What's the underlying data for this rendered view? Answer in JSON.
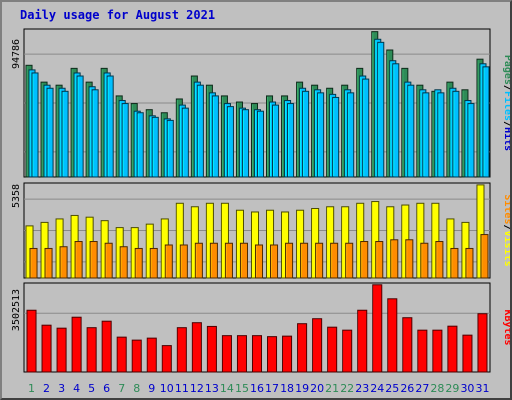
{
  "title": "Daily usage for August 2021",
  "colors": {
    "background": "#c0c0c0",
    "grid": "#8a8a8a",
    "pages": "#2e8b57",
    "files": "#00bfff",
    "visits": "#ffff00",
    "sites": "#ff8c00",
    "kbytes": "#ff0000",
    "title": "#0000cc",
    "day_weekday": "#0000cc",
    "day_weekend": "#2e8b57"
  },
  "chart_data": [
    {
      "type": "bar",
      "panel": "pages-files",
      "ymax_label": "94786",
      "ylim": [
        0,
        94786
      ],
      "right_label": {
        "parts": [
          "Pages",
          "/",
          "Files",
          "/",
          "Hits"
        ]
      },
      "categories": [
        "1",
        "2",
        "3",
        "4",
        "5",
        "6",
        "7",
        "8",
        "9",
        "10",
        "11",
        "12",
        "13",
        "14",
        "15",
        "16",
        "17",
        "18",
        "19",
        "20",
        "21",
        "22",
        "23",
        "24",
        "25",
        "26",
        "27",
        "28",
        "29",
        "30",
        "31"
      ],
      "series": [
        {
          "name": "Pages",
          "color": "pages",
          "values": [
            73000,
            62000,
            60000,
            71000,
            62000,
            71000,
            53000,
            48000,
            44000,
            42000,
            51000,
            66000,
            60000,
            53000,
            49000,
            48000,
            53000,
            53000,
            62000,
            60000,
            58000,
            60000,
            71000,
            95000,
            83000,
            71000,
            60000,
            56000,
            62000,
            57000,
            77000
          ]
        },
        {
          "name": "Files",
          "color": "files",
          "values": [
            70000,
            60000,
            58000,
            68000,
            59000,
            68000,
            50000,
            43000,
            40000,
            38000,
            47000,
            62000,
            55000,
            48000,
            45000,
            44000,
            49000,
            50000,
            58000,
            57000,
            54000,
            57000,
            66000,
            90000,
            76000,
            62000,
            57000,
            57000,
            58000,
            50000,
            74000
          ]
        },
        {
          "name": "Hits",
          "color": "files",
          "values": [
            68000,
            58000,
            56000,
            66000,
            57000,
            66000,
            48000,
            42000,
            39000,
            37000,
            45000,
            60000,
            53000,
            46000,
            44000,
            43000,
            47000,
            48000,
            56000,
            55000,
            52000,
            55000,
            64000,
            88000,
            74000,
            60000,
            55000,
            55000,
            56000,
            48000,
            72000
          ]
        }
      ]
    },
    {
      "type": "bar",
      "panel": "visits-sites",
      "ymax_label": "5358",
      "ylim": [
        0,
        5358
      ],
      "right_label": {
        "parts": [
          "Sites",
          "/",
          "Visits"
        ]
      },
      "categories": [
        "1",
        "2",
        "3",
        "4",
        "5",
        "6",
        "7",
        "8",
        "9",
        "10",
        "11",
        "12",
        "13",
        "14",
        "15",
        "16",
        "17",
        "18",
        "19",
        "20",
        "21",
        "22",
        "23",
        "24",
        "25",
        "26",
        "27",
        "28",
        "29",
        "30",
        "31"
      ],
      "series": [
        {
          "name": "Visits",
          "color": "visits",
          "values": [
            3000,
            3200,
            3400,
            3600,
            3500,
            3300,
            2900,
            2900,
            3100,
            3400,
            4300,
            4100,
            4300,
            4300,
            3900,
            3800,
            3900,
            3800,
            3900,
            4000,
            4100,
            4100,
            4300,
            4400,
            4100,
            4200,
            4300,
            4300,
            3400,
            3200,
            5358
          ]
        },
        {
          "name": "Sites",
          "color": "sites",
          "values": [
            1700,
            1700,
            1800,
            2100,
            2100,
            2000,
            1800,
            1700,
            1700,
            1900,
            1900,
            2000,
            2000,
            2000,
            2000,
            1900,
            1900,
            2000,
            2000,
            2000,
            2000,
            2000,
            2100,
            2100,
            2200,
            2200,
            2000,
            2100,
            1700,
            1700,
            2500
          ]
        }
      ]
    },
    {
      "type": "bar",
      "panel": "kbytes",
      "ymax_label": "3502513",
      "ylim": [
        0,
        3502513
      ],
      "right_label": {
        "parts": [
          "KBytes"
        ]
      },
      "categories": [
        "1",
        "2",
        "3",
        "4",
        "5",
        "6",
        "7",
        "8",
        "9",
        "10",
        "11",
        "12",
        "13",
        "14",
        "15",
        "16",
        "17",
        "18",
        "19",
        "20",
        "21",
        "22",
        "23",
        "24",
        "25",
        "26",
        "27",
        "28",
        "29",
        "30",
        "31"
      ],
      "series": [
        {
          "name": "KBytes",
          "color": "kbytes",
          "values": [
            2480000,
            1880000,
            1760000,
            2200000,
            1780000,
            2040000,
            1400000,
            1280000,
            1360000,
            1060000,
            1780000,
            1980000,
            1830000,
            1460000,
            1460000,
            1460000,
            1420000,
            1440000,
            1940000,
            2140000,
            1800000,
            1680000,
            2480000,
            3502513,
            2940000,
            2180000,
            1680000,
            1680000,
            1840000,
            1480000,
            2340000
          ]
        }
      ]
    }
  ],
  "x_axis": {
    "days": [
      "1",
      "2",
      "3",
      "4",
      "5",
      "6",
      "7",
      "8",
      "9",
      "10",
      "11",
      "12",
      "13",
      "14",
      "15",
      "16",
      "17",
      "18",
      "19",
      "20",
      "21",
      "22",
      "23",
      "24",
      "25",
      "26",
      "27",
      "28",
      "29",
      "30",
      "31"
    ],
    "weekend_days": [
      "1",
      "7",
      "8",
      "14",
      "15",
      "21",
      "22",
      "28",
      "29"
    ]
  }
}
